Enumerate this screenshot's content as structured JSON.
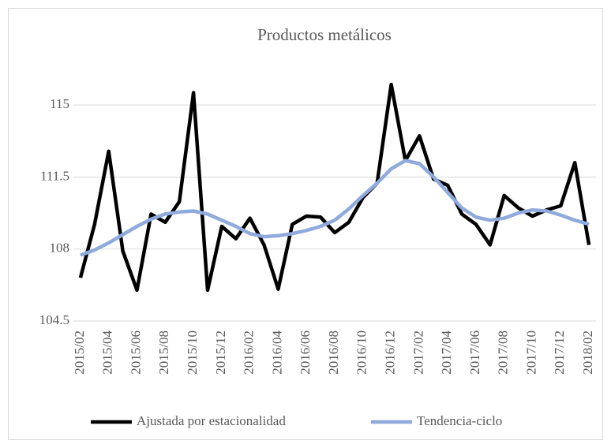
{
  "chart_data": {
    "type": "line",
    "title": "Productos metálicos",
    "categories": [
      "2015/02",
      null,
      "2015/04",
      null,
      "2015/06",
      null,
      "2015/08",
      null,
      "2015/10",
      null,
      "2015/12",
      null,
      "2016/02",
      null,
      "2016/04",
      null,
      "2016/06",
      null,
      "2016/08",
      null,
      "2016/10",
      null,
      "2016/12",
      null,
      "2017/02",
      null,
      "2017/04",
      null,
      "2017/06",
      null,
      "2017/08",
      null,
      "2017/10",
      null,
      "2017/12",
      null,
      "2018/02"
    ],
    "series": [
      {
        "name": "Ajustada por estacionalidad",
        "color": "#000000",
        "values": [
          106.6,
          109.2,
          112.75,
          107.9,
          106.0,
          109.7,
          109.3,
          110.3,
          115.6,
          106.0,
          109.1,
          108.5,
          109.5,
          108.2,
          106.05,
          109.2,
          109.6,
          109.55,
          108.8,
          109.3,
          110.5,
          111.2,
          116.0,
          112.3,
          113.5,
          111.4,
          111.1,
          109.7,
          109.2,
          108.2,
          110.6,
          110.0,
          109.6,
          109.9,
          110.1,
          112.2,
          108.2
        ]
      },
      {
        "name": "Tendencia-ciclo",
        "color": "#8faadc",
        "values": [
          107.7,
          107.95,
          108.3,
          108.7,
          109.1,
          109.45,
          109.7,
          109.8,
          109.85,
          109.7,
          109.4,
          109.1,
          108.75,
          108.6,
          108.65,
          108.75,
          108.9,
          109.1,
          109.4,
          109.95,
          110.6,
          111.2,
          111.9,
          112.3,
          112.15,
          111.5,
          110.75,
          110.0,
          109.55,
          109.4,
          109.5,
          109.75,
          109.9,
          109.85,
          109.65,
          109.4,
          109.2
        ]
      }
    ],
    "ylim": [
      104.5,
      117
    ],
    "yticks": [
      104.5,
      108,
      111.5,
      115
    ],
    "grid": true,
    "legend": "bottom"
  }
}
